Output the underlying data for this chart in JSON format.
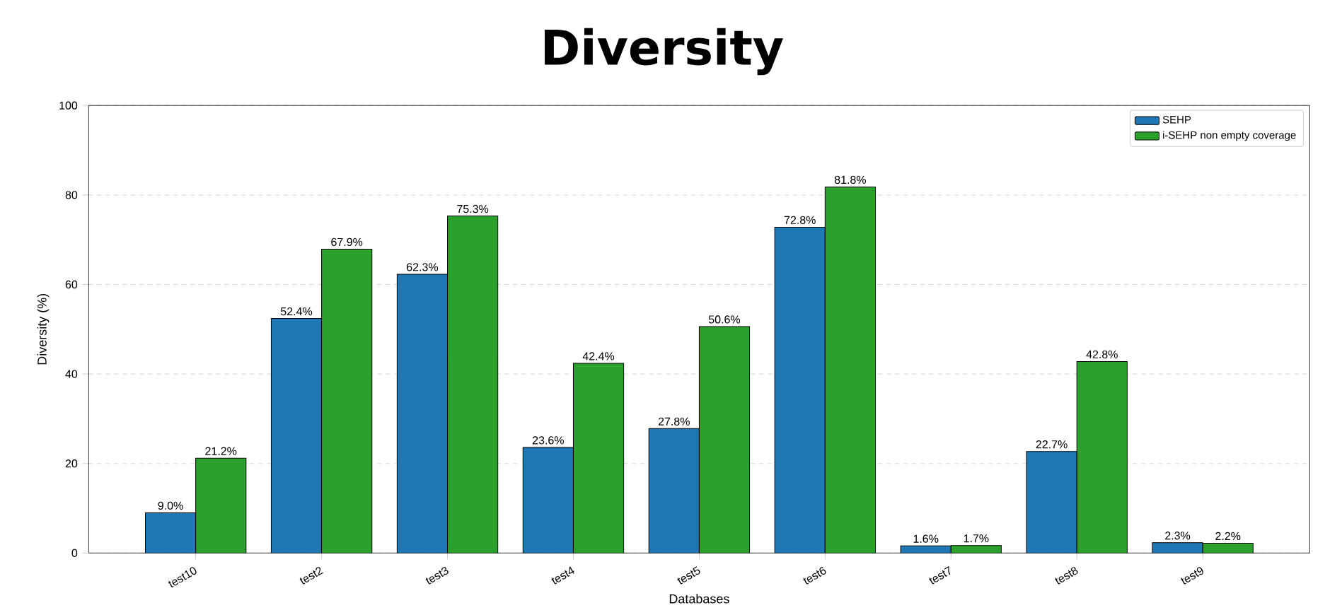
{
  "chart_data": {
    "type": "bar",
    "title": "Diversity",
    "xlabel": "Databases",
    "ylabel": "Diversity (%)",
    "categories": [
      "test10",
      "test2",
      "test3",
      "test4",
      "test5",
      "test6",
      "test7",
      "test8",
      "test9"
    ],
    "series": [
      {
        "name": "SEHP",
        "color": "#1f77b4",
        "values": [
          9.0,
          52.4,
          62.3,
          23.6,
          27.8,
          72.8,
          1.6,
          22.7,
          2.3
        ],
        "value_labels": [
          "9.0%",
          "52.4%",
          "62.3%",
          "23.6%",
          "27.8%",
          "72.8%",
          "1.6%",
          "22.7%",
          "2.3%"
        ]
      },
      {
        "name": "i-SEHP non empty coverage",
        "color": "#2ca02c",
        "values": [
          21.2,
          67.9,
          75.3,
          42.4,
          50.6,
          81.8,
          1.7,
          42.8,
          2.2
        ],
        "value_labels": [
          "21.2%",
          "67.9%",
          "75.3%",
          "42.4%",
          "50.6%",
          "81.8%",
          "1.7%",
          "42.8%",
          "2.2%"
        ]
      }
    ],
    "ylim": [
      0,
      100
    ],
    "yticks": [
      0,
      20,
      40,
      60,
      80,
      100
    ],
    "grid": "y",
    "legend": "top right"
  }
}
